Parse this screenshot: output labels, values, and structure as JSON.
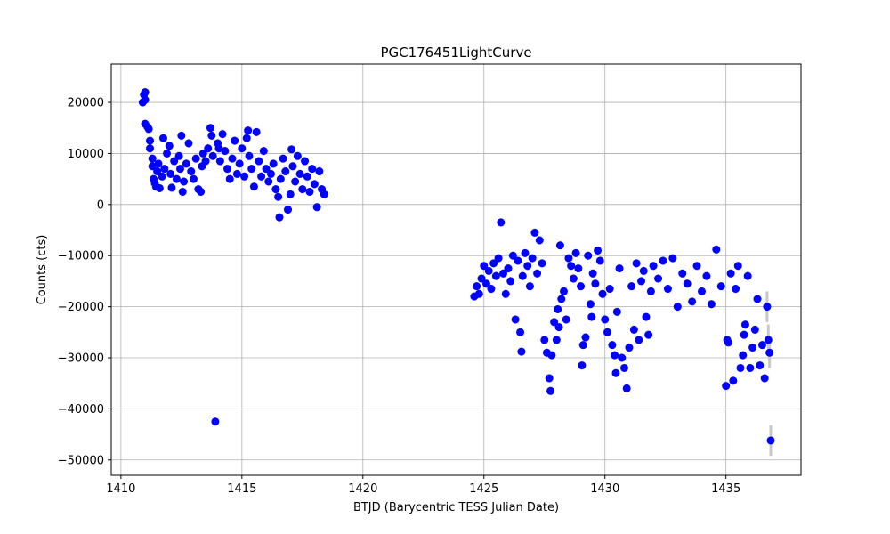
{
  "chart_data": {
    "type": "scatter",
    "title": "PGC176451LightCurve",
    "xlabel": "BTJD (Barycentric TESS Julian Date)",
    "ylabel": "Counts (cts)",
    "xlim": [
      1409.6,
      1438.1
    ],
    "ylim": [
      -53000,
      27500
    ],
    "xticks": [
      1410,
      1415,
      1420,
      1425,
      1430,
      1435
    ],
    "yticks": [
      20000,
      10000,
      0,
      -10000,
      -20000,
      -30000,
      -40000,
      -50000
    ],
    "xtick_labels": [
      "1410",
      "1415",
      "1420",
      "1425",
      "1430",
      "1435"
    ],
    "ytick_labels": [
      "20000",
      "10000",
      "0",
      "−10000",
      "−20000",
      "−30000",
      "−40000",
      "−50000"
    ],
    "grid": true,
    "marker_color": "#0000ff",
    "errorbar_color": "#c8c8c8",
    "points": [
      {
        "x": 1410.9,
        "y": 20000
      },
      {
        "x": 1411.0,
        "y": 22000
      },
      {
        "x": 1410.95,
        "y": 21500
      },
      {
        "x": 1411.0,
        "y": 20500
      },
      {
        "x": 1411.0,
        "y": 15800
      },
      {
        "x": 1411.1,
        "y": 15200
      },
      {
        "x": 1411.15,
        "y": 14800
      },
      {
        "x": 1411.2,
        "y": 12500
      },
      {
        "x": 1411.2,
        "y": 11000
      },
      {
        "x": 1411.3,
        "y": 9000
      },
      {
        "x": 1411.3,
        "y": 7500
      },
      {
        "x": 1411.35,
        "y": 5000
      },
      {
        "x": 1411.4,
        "y": 4200
      },
      {
        "x": 1411.45,
        "y": 3500
      },
      {
        "x": 1411.5,
        "y": 6500
      },
      {
        "x": 1411.55,
        "y": 8000
      },
      {
        "x": 1411.6,
        "y": 3200
      },
      {
        "x": 1411.7,
        "y": 5500
      },
      {
        "x": 1411.75,
        "y": 13000
      },
      {
        "x": 1411.8,
        "y": 7000
      },
      {
        "x": 1411.9,
        "y": 10000
      },
      {
        "x": 1412.0,
        "y": 11500
      },
      {
        "x": 1412.05,
        "y": 6000
      },
      {
        "x": 1412.1,
        "y": 3300
      },
      {
        "x": 1412.2,
        "y": 8500
      },
      {
        "x": 1412.3,
        "y": 5000
      },
      {
        "x": 1412.4,
        "y": 9500
      },
      {
        "x": 1412.45,
        "y": 7000
      },
      {
        "x": 1412.5,
        "y": 13500
      },
      {
        "x": 1412.55,
        "y": 2500
      },
      {
        "x": 1412.6,
        "y": 4500
      },
      {
        "x": 1412.7,
        "y": 8000
      },
      {
        "x": 1412.8,
        "y": 12000
      },
      {
        "x": 1412.9,
        "y": 6500
      },
      {
        "x": 1413.0,
        "y": 5000
      },
      {
        "x": 1413.1,
        "y": 9000
      },
      {
        "x": 1413.2,
        "y": 3000
      },
      {
        "x": 1413.3,
        "y": 2500
      },
      {
        "x": 1413.35,
        "y": 7500
      },
      {
        "x": 1413.4,
        "y": 10000
      },
      {
        "x": 1413.5,
        "y": 8500
      },
      {
        "x": 1413.6,
        "y": 11000
      },
      {
        "x": 1413.7,
        "y": 15000
      },
      {
        "x": 1413.75,
        "y": 13500
      },
      {
        "x": 1413.8,
        "y": 9500
      },
      {
        "x": 1413.9,
        "y": -42500
      },
      {
        "x": 1414.0,
        "y": 12000
      },
      {
        "x": 1414.05,
        "y": 11000
      },
      {
        "x": 1414.1,
        "y": 8500
      },
      {
        "x": 1414.2,
        "y": 13800
      },
      {
        "x": 1414.3,
        "y": 10500
      },
      {
        "x": 1414.4,
        "y": 7000
      },
      {
        "x": 1414.5,
        "y": 5000
      },
      {
        "x": 1414.6,
        "y": 9000
      },
      {
        "x": 1414.7,
        "y": 12500
      },
      {
        "x": 1414.8,
        "y": 6000
      },
      {
        "x": 1414.9,
        "y": 8000
      },
      {
        "x": 1415.0,
        "y": 11000
      },
      {
        "x": 1415.1,
        "y": 5500
      },
      {
        "x": 1415.2,
        "y": 13000
      },
      {
        "x": 1415.25,
        "y": 14500
      },
      {
        "x": 1415.3,
        "y": 9500
      },
      {
        "x": 1415.4,
        "y": 7000
      },
      {
        "x": 1415.5,
        "y": 3500
      },
      {
        "x": 1415.6,
        "y": 14200
      },
      {
        "x": 1415.7,
        "y": 8500
      },
      {
        "x": 1415.8,
        "y": 5500
      },
      {
        "x": 1415.9,
        "y": 10500
      },
      {
        "x": 1416.0,
        "y": 7000
      },
      {
        "x": 1416.1,
        "y": 4500
      },
      {
        "x": 1416.2,
        "y": 6000
      },
      {
        "x": 1416.3,
        "y": 8000
      },
      {
        "x": 1416.4,
        "y": 3000
      },
      {
        "x": 1416.5,
        "y": 1500
      },
      {
        "x": 1416.55,
        "y": -2500
      },
      {
        "x": 1416.6,
        "y": 5000
      },
      {
        "x": 1416.7,
        "y": 9000
      },
      {
        "x": 1416.8,
        "y": 6500
      },
      {
        "x": 1416.9,
        "y": -1000
      },
      {
        "x": 1417.0,
        "y": 2000
      },
      {
        "x": 1417.05,
        "y": 10800
      },
      {
        "x": 1417.1,
        "y": 7500
      },
      {
        "x": 1417.2,
        "y": 4500
      },
      {
        "x": 1417.3,
        "y": 9500
      },
      {
        "x": 1417.4,
        "y": 6000
      },
      {
        "x": 1417.5,
        "y": 3000
      },
      {
        "x": 1417.6,
        "y": 8500
      },
      {
        "x": 1417.7,
        "y": 5500
      },
      {
        "x": 1417.8,
        "y": 2500
      },
      {
        "x": 1417.9,
        "y": 7000
      },
      {
        "x": 1418.0,
        "y": 4000
      },
      {
        "x": 1418.1,
        "y": -500
      },
      {
        "x": 1418.2,
        "y": 6500
      },
      {
        "x": 1418.3,
        "y": 3000
      },
      {
        "x": 1418.4,
        "y": 2000
      },
      {
        "x": 1424.6,
        "y": -18000
      },
      {
        "x": 1424.7,
        "y": -16000
      },
      {
        "x": 1424.8,
        "y": -17500
      },
      {
        "x": 1424.9,
        "y": -14500
      },
      {
        "x": 1425.0,
        "y": -12000
      },
      {
        "x": 1425.1,
        "y": -15500
      },
      {
        "x": 1425.2,
        "y": -13000
      },
      {
        "x": 1425.3,
        "y": -16500
      },
      {
        "x": 1425.4,
        "y": -11500
      },
      {
        "x": 1425.5,
        "y": -14000
      },
      {
        "x": 1425.6,
        "y": -10500
      },
      {
        "x": 1425.7,
        "y": -3500
      },
      {
        "x": 1425.8,
        "y": -13500
      },
      {
        "x": 1425.9,
        "y": -17500
      },
      {
        "x": 1426.0,
        "y": -12500
      },
      {
        "x": 1426.1,
        "y": -15000
      },
      {
        "x": 1426.2,
        "y": -10000
      },
      {
        "x": 1426.3,
        "y": -22500
      },
      {
        "x": 1426.4,
        "y": -11000
      },
      {
        "x": 1426.5,
        "y": -25000
      },
      {
        "x": 1426.55,
        "y": -28800
      },
      {
        "x": 1426.6,
        "y": -14000
      },
      {
        "x": 1426.7,
        "y": -9500
      },
      {
        "x": 1426.8,
        "y": -12000
      },
      {
        "x": 1426.9,
        "y": -16000
      },
      {
        "x": 1427.0,
        "y": -10500
      },
      {
        "x": 1427.1,
        "y": -5500
      },
      {
        "x": 1427.2,
        "y": -13500
      },
      {
        "x": 1427.3,
        "y": -7000
      },
      {
        "x": 1427.4,
        "y": -11500
      },
      {
        "x": 1427.5,
        "y": -26500
      },
      {
        "x": 1427.6,
        "y": -29000
      },
      {
        "x": 1427.7,
        "y": -34000
      },
      {
        "x": 1427.75,
        "y": -36500
      },
      {
        "x": 1427.8,
        "y": -29500
      },
      {
        "x": 1427.9,
        "y": -23000
      },
      {
        "x": 1428.0,
        "y": -26500
      },
      {
        "x": 1428.05,
        "y": -20500
      },
      {
        "x": 1428.1,
        "y": -24000
      },
      {
        "x": 1428.15,
        "y": -8000
      },
      {
        "x": 1428.2,
        "y": -18500
      },
      {
        "x": 1428.3,
        "y": -17000
      },
      {
        "x": 1428.4,
        "y": -22500
      },
      {
        "x": 1428.5,
        "y": -10500
      },
      {
        "x": 1428.6,
        "y": -12000
      },
      {
        "x": 1428.7,
        "y": -14500
      },
      {
        "x": 1428.8,
        "y": -9500
      },
      {
        "x": 1428.9,
        "y": -12500
      },
      {
        "x": 1429.0,
        "y": -16000
      },
      {
        "x": 1429.05,
        "y": -31500
      },
      {
        "x": 1429.1,
        "y": -27500
      },
      {
        "x": 1429.2,
        "y": -26000
      },
      {
        "x": 1429.3,
        "y": -10000
      },
      {
        "x": 1429.4,
        "y": -19500
      },
      {
        "x": 1429.45,
        "y": -22000
      },
      {
        "x": 1429.5,
        "y": -13500
      },
      {
        "x": 1429.6,
        "y": -15500
      },
      {
        "x": 1429.7,
        "y": -9000
      },
      {
        "x": 1429.8,
        "y": -11000
      },
      {
        "x": 1429.9,
        "y": -17500
      },
      {
        "x": 1430.0,
        "y": -22500
      },
      {
        "x": 1430.1,
        "y": -25000
      },
      {
        "x": 1430.2,
        "y": -16500
      },
      {
        "x": 1430.3,
        "y": -27500
      },
      {
        "x": 1430.4,
        "y": -29500
      },
      {
        "x": 1430.45,
        "y": -33000
      },
      {
        "x": 1430.5,
        "y": -21000
      },
      {
        "x": 1430.6,
        "y": -12500
      },
      {
        "x": 1430.7,
        "y": -30000
      },
      {
        "x": 1430.8,
        "y": -32000
      },
      {
        "x": 1430.9,
        "y": -36000
      },
      {
        "x": 1431.0,
        "y": -28000
      },
      {
        "x": 1431.1,
        "y": -16000
      },
      {
        "x": 1431.2,
        "y": -24500
      },
      {
        "x": 1431.3,
        "y": -11500
      },
      {
        "x": 1431.4,
        "y": -26500
      },
      {
        "x": 1431.5,
        "y": -15000
      },
      {
        "x": 1431.6,
        "y": -13000
      },
      {
        "x": 1431.7,
        "y": -22000
      },
      {
        "x": 1431.8,
        "y": -25500
      },
      {
        "x": 1431.9,
        "y": -17000
      },
      {
        "x": 1432.0,
        "y": -12000
      },
      {
        "x": 1432.2,
        "y": -14500
      },
      {
        "x": 1432.4,
        "y": -11000
      },
      {
        "x": 1432.6,
        "y": -16500
      },
      {
        "x": 1432.8,
        "y": -10500
      },
      {
        "x": 1433.0,
        "y": -20000
      },
      {
        "x": 1433.2,
        "y": -13500
      },
      {
        "x": 1433.4,
        "y": -15500
      },
      {
        "x": 1433.6,
        "y": -19000
      },
      {
        "x": 1433.8,
        "y": -12000
      },
      {
        "x": 1434.0,
        "y": -17000
      },
      {
        "x": 1434.2,
        "y": -14000
      },
      {
        "x": 1434.4,
        "y": -19500
      },
      {
        "x": 1434.6,
        "y": -8800
      },
      {
        "x": 1434.8,
        "y": -16000
      },
      {
        "x": 1435.0,
        "y": -35500
      },
      {
        "x": 1435.05,
        "y": -26500
      },
      {
        "x": 1435.1,
        "y": -27000
      },
      {
        "x": 1435.2,
        "y": -13500
      },
      {
        "x": 1435.3,
        "y": -34500
      },
      {
        "x": 1435.4,
        "y": -16500
      },
      {
        "x": 1435.5,
        "y": -12000
      },
      {
        "x": 1435.6,
        "y": -32000
      },
      {
        "x": 1435.7,
        "y": -29500
      },
      {
        "x": 1435.75,
        "y": -25500
      },
      {
        "x": 1435.8,
        "y": -23500
      },
      {
        "x": 1435.9,
        "y": -14000
      },
      {
        "x": 1436.0,
        "y": -32000
      },
      {
        "x": 1436.1,
        "y": -28000
      },
      {
        "x": 1436.2,
        "y": -24500
      },
      {
        "x": 1436.3,
        "y": -18500
      },
      {
        "x": 1436.4,
        "y": -31500
      },
      {
        "x": 1436.5,
        "y": -27500
      },
      {
        "x": 1436.6,
        "y": -34000
      },
      {
        "x": 1436.7,
        "y": -20000
      },
      {
        "x": 1436.75,
        "y": -26500
      },
      {
        "x": 1436.8,
        "y": -29000
      },
      {
        "x": 1436.85,
        "y": -46200
      }
    ]
  }
}
